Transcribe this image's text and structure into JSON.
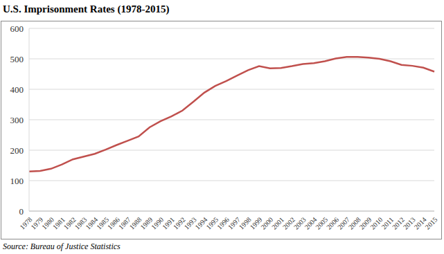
{
  "chart_data": {
    "type": "line",
    "title": "U.S. Imprisonment Rates (1978-2015)",
    "source": "Source: Bureau of Justice Statistics",
    "categories": [
      "1978",
      "1979",
      "1980",
      "1981",
      "1982",
      "1983",
      "1984",
      "1985",
      "1986",
      "1987",
      "1988",
      "1989",
      "1990",
      "1991",
      "1992",
      "1993",
      "1994",
      "1995",
      "1996",
      "1997",
      "1998",
      "1999",
      "2000",
      "2001",
      "2002",
      "2003",
      "2004",
      "2005",
      "2006",
      "2007",
      "2008",
      "2009",
      "2010",
      "2011",
      "2012",
      "2013",
      "2014",
      "2015"
    ],
    "values": [
      130,
      132,
      139,
      153,
      170,
      179,
      188,
      202,
      217,
      231,
      245,
      275,
      295,
      311,
      330,
      359,
      389,
      411,
      427,
      445,
      463,
      476,
      469,
      470,
      476,
      483,
      486,
      492,
      501,
      506,
      506,
      504,
      500,
      492,
      480,
      477,
      471,
      458
    ],
    "color": "#c0504d",
    "ylim": [
      0,
      600
    ],
    "yticks": [
      0,
      100,
      200,
      300,
      400,
      500,
      600
    ],
    "grid": true
  }
}
